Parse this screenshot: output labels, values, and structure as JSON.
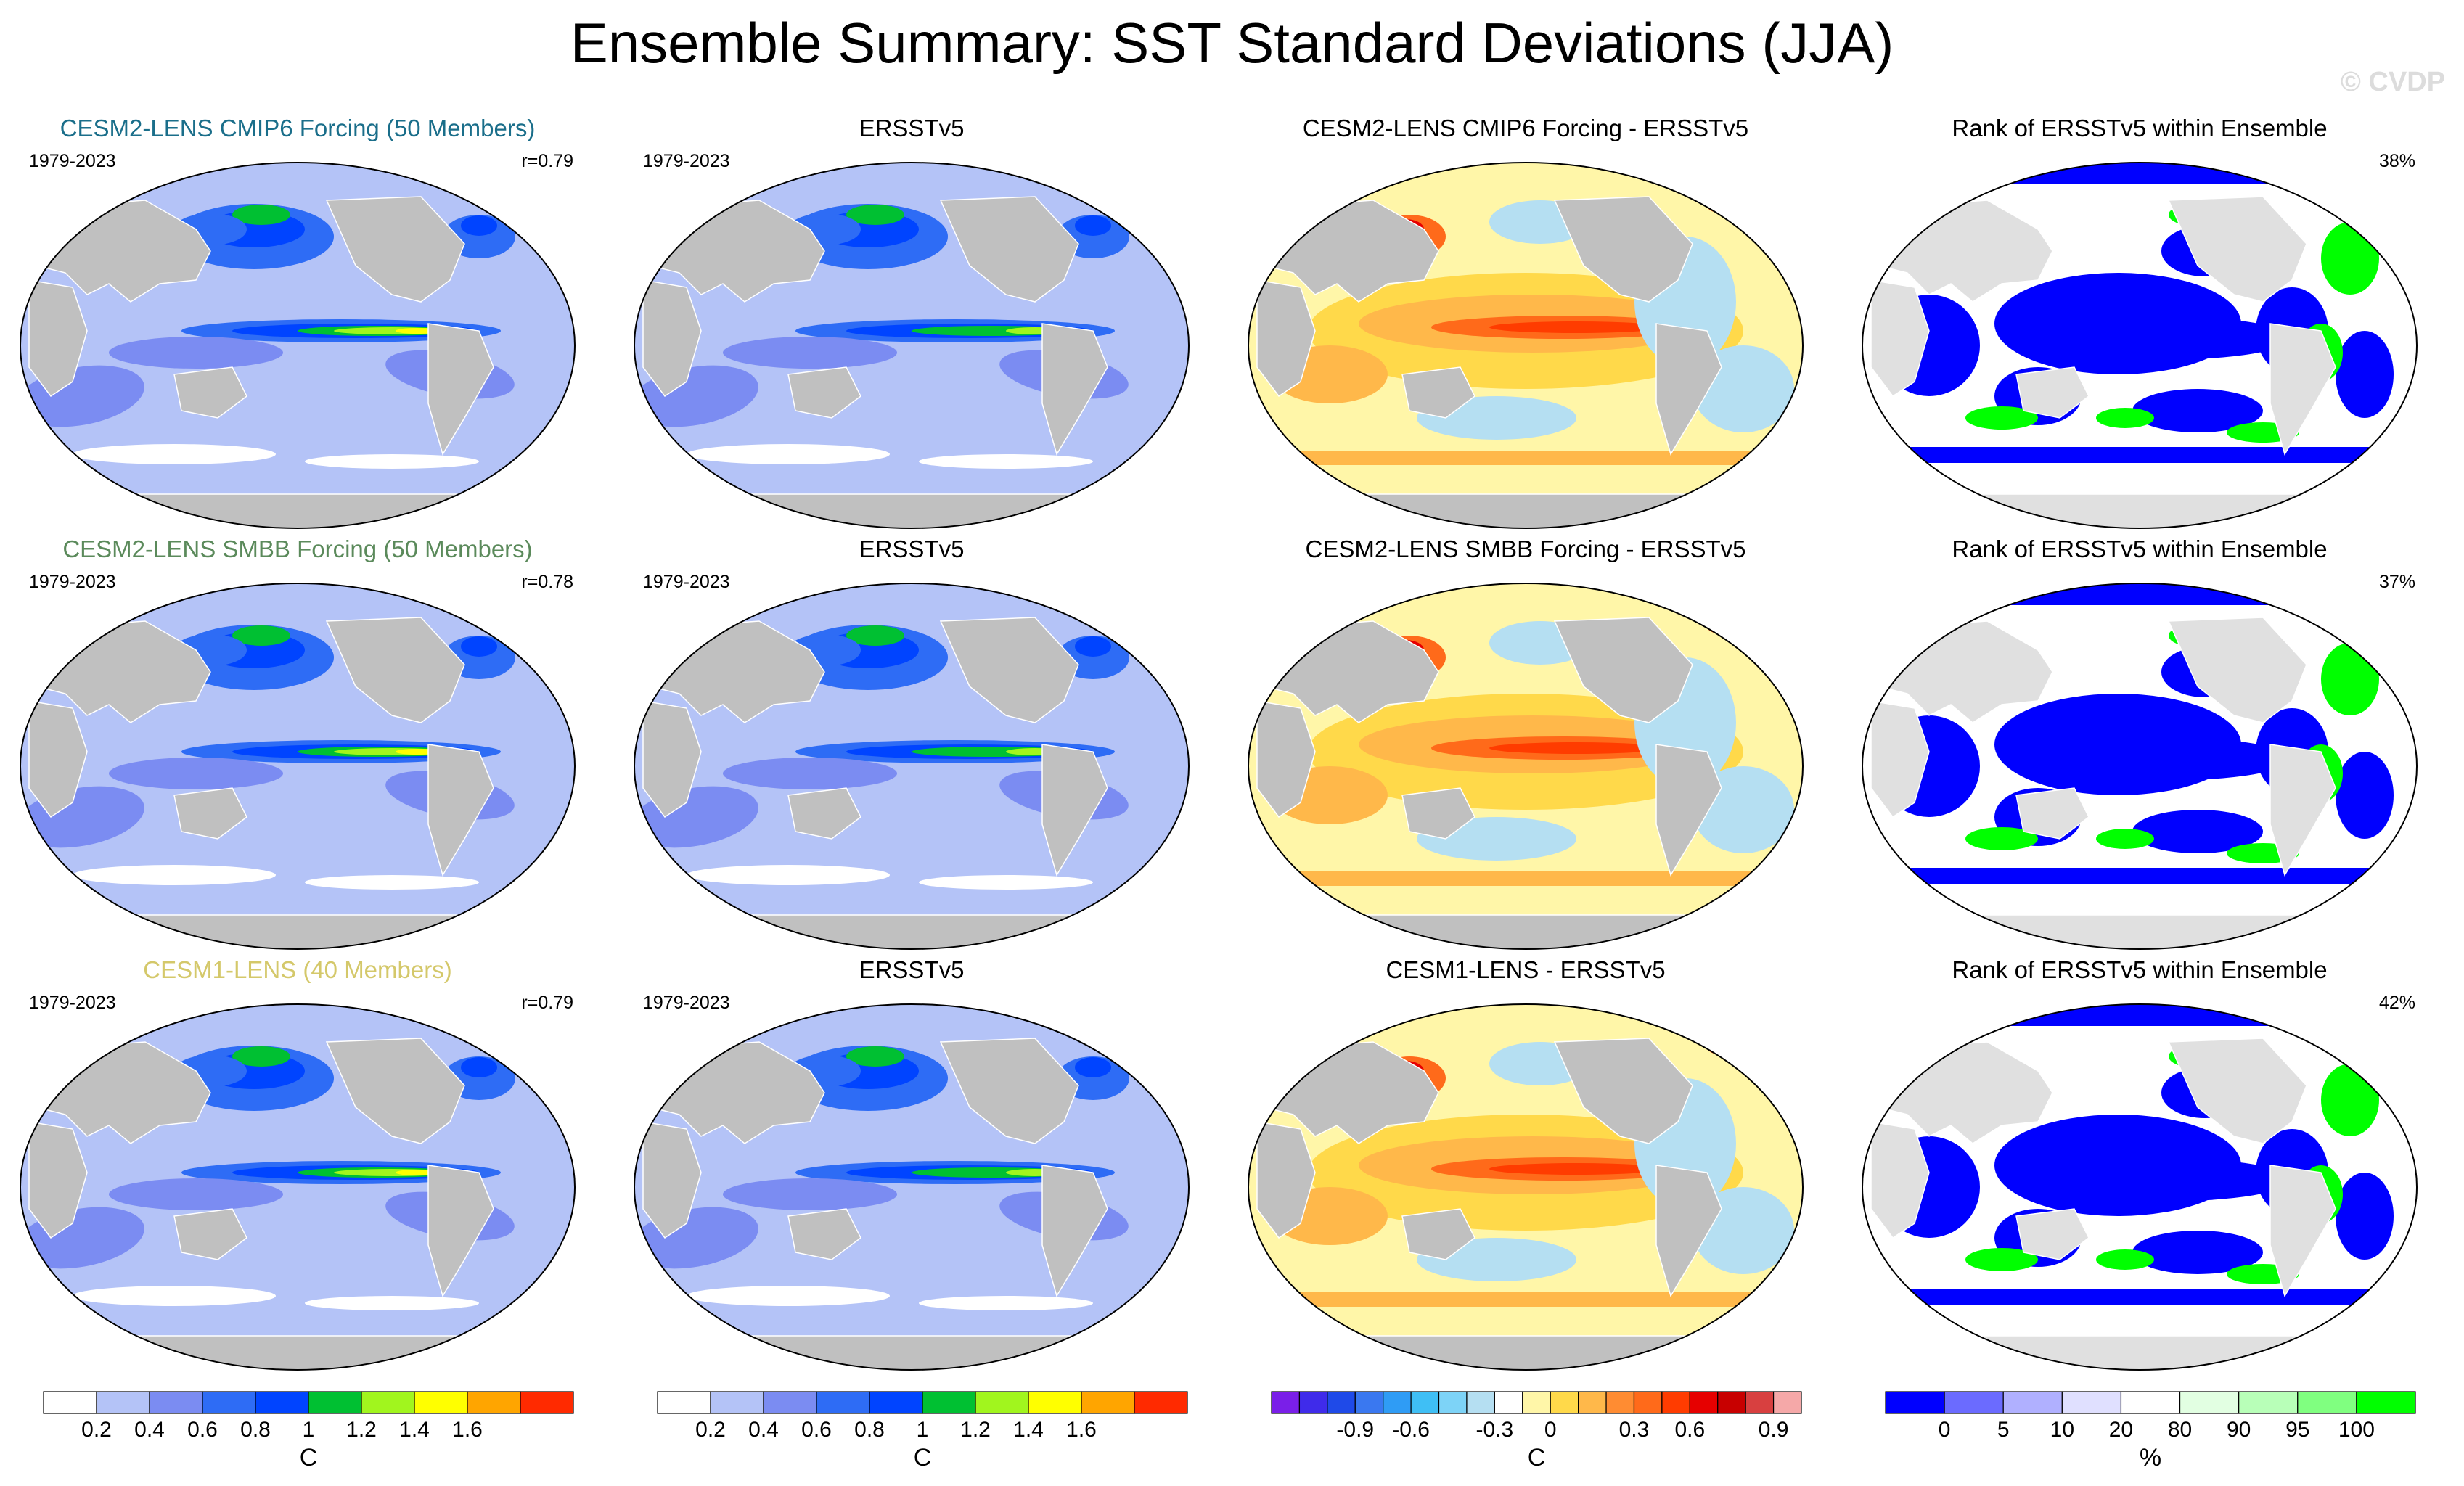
{
  "title": "Ensemble Summary: SST Standard Deviations (JJA)",
  "watermark": "© CVDP",
  "colors": {
    "stddev_levels": [
      "#ffffff",
      "#b4c3f7",
      "#7b8cf2",
      "#2e6cf5",
      "#0044ff",
      "#00c032",
      "#a1f51e",
      "#ffff00",
      "#ffa500",
      "#ff2a00"
    ],
    "diff_levels": [
      "#7a1fe8",
      "#3f2bea",
      "#1f4ae8",
      "#3a78f0",
      "#2f9cf5",
      "#3fbff5",
      "#7dd3f7",
      "#b5dff2",
      "#ffffff",
      "#fff6a8",
      "#ffd94a",
      "#ffb84a",
      "#ff8c32",
      "#ff6a1a",
      "#ff3c00",
      "#e60000",
      "#c80000",
      "#d84040",
      "#f5a8a8"
    ],
    "rank_levels": [
      "#0000ff",
      "#6b6bff",
      "#b0b0ff",
      "#e0e0ff",
      "#ffffff",
      "#e2ffe2",
      "#b8ffb8",
      "#80ff80",
      "#00ff00"
    ],
    "land": "#c0c0c0",
    "title_model1": "#1a6e8a",
    "title_model2": "#5b8a5b",
    "title_model3": "#d4c86a"
  },
  "rows": [
    {
      "model_title": "CESM2-LENS CMIP6 Forcing (50 Members)",
      "model_period": "1979-2023",
      "pattern_corr": "r=0.79",
      "obs_title": "ERSSTv5",
      "obs_period": "1979-2023",
      "diff_title": "CESM2-LENS CMIP6 Forcing - ERSSTv5",
      "rank_title": "Rank of ERSSTv5 within Ensemble",
      "rank_pct": "38%"
    },
    {
      "model_title": "CESM2-LENS SMBB Forcing (50 Members)",
      "model_period": "1979-2023",
      "pattern_corr": "r=0.78",
      "obs_title": "ERSSTv5",
      "obs_period": "1979-2023",
      "diff_title": "CESM2-LENS SMBB Forcing - ERSSTv5",
      "rank_title": "Rank of ERSSTv5 within Ensemble",
      "rank_pct": "37%"
    },
    {
      "model_title": "CESM1-LENS (40 Members)",
      "model_period": "1979-2023",
      "pattern_corr": "r=0.79",
      "obs_title": "ERSSTv5",
      "obs_period": "1979-2023",
      "diff_title": "CESM1-LENS - ERSSTv5",
      "rank_title": "Rank of ERSSTv5 within Ensemble",
      "rank_pct": "42%"
    }
  ],
  "colorbars": [
    {
      "unit": "C",
      "ticks": [
        "0.2",
        "0.4",
        "0.6",
        "0.8",
        "1",
        "1.2",
        "1.4",
        "1.6"
      ]
    },
    {
      "unit": "C",
      "ticks": [
        "0.2",
        "0.4",
        "0.6",
        "0.8",
        "1",
        "1.2",
        "1.4",
        "1.6"
      ]
    },
    {
      "unit": "C",
      "ticks": [
        "-0.9",
        "-0.6",
        "-0.3",
        "0",
        "0.3",
        "0.6",
        "0.9"
      ]
    },
    {
      "unit": "%",
      "ticks": [
        "0",
        "5",
        "10",
        "20",
        "80",
        "90",
        "95",
        "100"
      ]
    }
  ],
  "chart_data": {
    "type": "heatmap",
    "title": "Ensemble Summary: SST Standard Deviations (JJA)",
    "projection": "robinson-like global map, Pacific-centered",
    "panels_per_row": 4,
    "rows": 3,
    "stddev_scale": {
      "unit": "C",
      "levels": [
        0.2,
        0.4,
        0.6,
        0.8,
        1.0,
        1.2,
        1.4,
        1.6
      ],
      "max_value_region": "eastern equatorial Pacific"
    },
    "diff_scale": {
      "unit": "C",
      "levels": [
        -0.9,
        -0.6,
        -0.3,
        0,
        0.3,
        0.6,
        0.9
      ]
    },
    "rank_scale": {
      "unit": "%",
      "levels": [
        0,
        5,
        10,
        20,
        80,
        90,
        95,
        100
      ]
    },
    "pattern_correlations": [
      {
        "name": "CESM2-LENS CMIP6 Forcing (50 Members)",
        "r": 0.79,
        "rank_pct": 38
      },
      {
        "name": "CESM2-LENS SMBB Forcing (50 Members)",
        "r": 0.78,
        "rank_pct": 37
      },
      {
        "name": "CESM1-LENS (40 Members)",
        "r": 0.79,
        "rank_pct": 42
      }
    ]
  }
}
